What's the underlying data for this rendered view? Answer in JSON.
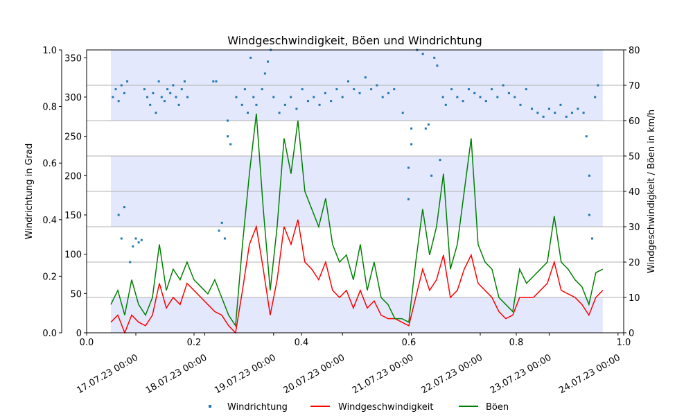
{
  "chart_data": {
    "type": "line",
    "title": "Windgeschwindigkeit, Böen und Windrichtung",
    "ylabel_left": "Windrichtung in Grad",
    "ylabel_right": "Windgeschwindigkeit / Böen in km/h",
    "ylim_left": [
      0,
      360
    ],
    "ylim_right": [
      0,
      80
    ],
    "left_ticks": [
      "0",
      "50",
      "100",
      "150",
      "200",
      "250",
      "300",
      "350"
    ],
    "overlay_axis_ticks": [
      "0.0",
      "0.2",
      "0.4",
      "0.6",
      "0.8",
      "1.0"
    ],
    "right_ticks": [
      "0",
      "10",
      "20",
      "30",
      "40",
      "50",
      "60",
      "70",
      "80"
    ],
    "x_ticks": [
      "17.07.23 00:00",
      "18.07.23 00:00",
      "19.07.23 00:00",
      "20.07.23 00:00",
      "21.07.23 00:00",
      "22.07.23 00:00",
      "23.07.23 00:00",
      "24.07.23 00:00"
    ],
    "x_unit": "hours since 17.07.23 00:00",
    "shaded_bands_kmh": [
      [
        0,
        10
      ],
      [
        30,
        50
      ],
      [
        60,
        80
      ]
    ],
    "band_color": "#e3e8fd",
    "grid": "horizontal at right-axis ticks",
    "legend_placement": "bottom-center",
    "legend": [
      "Windrichtung",
      "Windgeschwindigkeit",
      "Böen"
    ],
    "colors": {
      "Windrichtung": "#1f77b4",
      "Windgeschwindigkeit": "#ff0000",
      "Böen": "#008000"
    },
    "time_start_hours": -8.7,
    "time_step_hours": 2.414,
    "series": [
      {
        "name": "Böen",
        "values": [
          8,
          12,
          5,
          15,
          8,
          5,
          10,
          25,
          12,
          18,
          15,
          20,
          15,
          13,
          11,
          15,
          10,
          5,
          2,
          25,
          45,
          62,
          35,
          12,
          30,
          55,
          45,
          60,
          40,
          35,
          30,
          38,
          25,
          20,
          22,
          15,
          25,
          12,
          20,
          10,
          8,
          4,
          4,
          3,
          20,
          35,
          22,
          30,
          45,
          18,
          25,
          40,
          55,
          25,
          20,
          18,
          10,
          8,
          6,
          18,
          14,
          16,
          18,
          20,
          33,
          20,
          18,
          15,
          13,
          8,
          17,
          18
        ]
      },
      {
        "name": "Windgeschwindigkeit",
        "values": [
          3,
          5,
          0,
          5,
          3,
          2,
          5,
          14,
          7,
          10,
          8,
          14,
          12,
          10,
          8,
          6,
          5,
          2,
          0,
          12,
          25,
          30,
          18,
          5,
          15,
          30,
          25,
          32,
          20,
          18,
          15,
          20,
          12,
          10,
          12,
          7,
          12,
          7,
          9,
          5,
          4,
          4,
          3,
          2,
          10,
          18,
          12,
          15,
          22,
          10,
          12,
          18,
          22,
          14,
          12,
          10,
          6,
          4,
          5,
          10,
          10,
          10,
          12,
          14,
          20,
          12,
          11,
          10,
          8,
          5,
          10,
          12
        ]
      }
    ],
    "direction_points": [
      [
        -8,
        300
      ],
      [
        -7,
        310
      ],
      [
        -6,
        295
      ],
      [
        -5,
        315
      ],
      [
        -4,
        305
      ],
      [
        -3,
        320
      ],
      [
        -6,
        150
      ],
      [
        -5,
        120
      ],
      [
        -4,
        160
      ],
      [
        -2,
        90
      ],
      [
        -1,
        110
      ],
      [
        0,
        120
      ],
      [
        1,
        115
      ],
      [
        2,
        118
      ],
      [
        3,
        310
      ],
      [
        4,
        300
      ],
      [
        5,
        290
      ],
      [
        6,
        305
      ],
      [
        7,
        280
      ],
      [
        8,
        320
      ],
      [
        9,
        300
      ],
      [
        10,
        295
      ],
      [
        11,
        310
      ],
      [
        12,
        305
      ],
      [
        13,
        315
      ],
      [
        14,
        300
      ],
      [
        15,
        290
      ],
      [
        16,
        310
      ],
      [
        17,
        320
      ],
      [
        18,
        300
      ],
      [
        27,
        320
      ],
      [
        28,
        320
      ],
      [
        29,
        130
      ],
      [
        30,
        140
      ],
      [
        31,
        120
      ],
      [
        32,
        250
      ],
      [
        32,
        270
      ],
      [
        33,
        240
      ],
      [
        35,
        300
      ],
      [
        37,
        290
      ],
      [
        38,
        310
      ],
      [
        39,
        280
      ],
      [
        40,
        350
      ],
      [
        41,
        300
      ],
      [
        42,
        290
      ],
      [
        44,
        310
      ],
      [
        45,
        330
      ],
      [
        46,
        345
      ],
      [
        47,
        360
      ],
      [
        48,
        300
      ],
      [
        50,
        280
      ],
      [
        52,
        290
      ],
      [
        54,
        300
      ],
      [
        56,
        285
      ],
      [
        58,
        310
      ],
      [
        60,
        295
      ],
      [
        62,
        300
      ],
      [
        64,
        290
      ],
      [
        66,
        305
      ],
      [
        68,
        295
      ],
      [
        70,
        310
      ],
      [
        72,
        300
      ],
      [
        74,
        320
      ],
      [
        76,
        310
      ],
      [
        78,
        305
      ],
      [
        80,
        325
      ],
      [
        82,
        310
      ],
      [
        84,
        315
      ],
      [
        86,
        300
      ],
      [
        88,
        305
      ],
      [
        90,
        310
      ],
      [
        93,
        280
      ],
      [
        95,
        170
      ],
      [
        95,
        210
      ],
      [
        96,
        240
      ],
      [
        96,
        260
      ],
      [
        98,
        360
      ],
      [
        100,
        355
      ],
      [
        101,
        260
      ],
      [
        102,
        265
      ],
      [
        103,
        200
      ],
      [
        104,
        350
      ],
      [
        105,
        340
      ],
      [
        106,
        220
      ],
      [
        107,
        300
      ],
      [
        108,
        290
      ],
      [
        110,
        310
      ],
      [
        112,
        300
      ],
      [
        114,
        295
      ],
      [
        116,
        310
      ],
      [
        118,
        305
      ],
      [
        120,
        300
      ],
      [
        122,
        295
      ],
      [
        124,
        310
      ],
      [
        126,
        300
      ],
      [
        128,
        315
      ],
      [
        130,
        305
      ],
      [
        132,
        300
      ],
      [
        134,
        290
      ],
      [
        136,
        310
      ],
      [
        138,
        285
      ],
      [
        140,
        280
      ],
      [
        142,
        275
      ],
      [
        144,
        285
      ],
      [
        146,
        280
      ],
      [
        148,
        290
      ],
      [
        150,
        275
      ],
      [
        152,
        280
      ],
      [
        154,
        285
      ],
      [
        156,
        280
      ],
      [
        157,
        250
      ],
      [
        158,
        200
      ],
      [
        158,
        150
      ],
      [
        159,
        120
      ],
      [
        160,
        300
      ],
      [
        161,
        315
      ]
    ]
  }
}
